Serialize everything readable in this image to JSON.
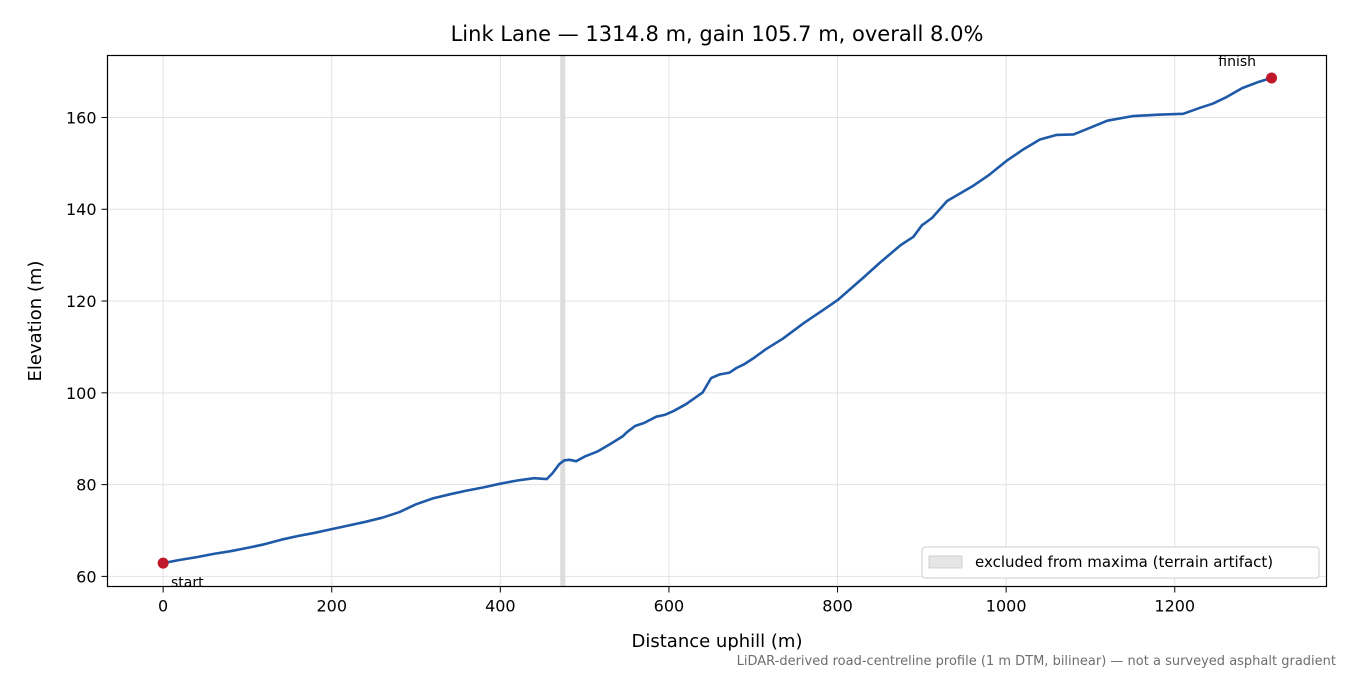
{
  "chart_data": {
    "type": "line",
    "title": "Link Lane — 1314.8 m, gain 105.7 m, overall 8.0%",
    "xlabel": "Distance uphill (m)",
    "ylabel": "Elevation (m)",
    "xlim": [
      -66,
      1380
    ],
    "ylim": [
      57.8,
      173.5
    ],
    "xticks": [
      0,
      200,
      400,
      600,
      800,
      1000,
      1200
    ],
    "yticks": [
      60,
      80,
      100,
      120,
      140,
      160
    ],
    "x_tick_labels": [
      "0",
      "200",
      "400",
      "600",
      "800",
      "1000",
      "1200"
    ],
    "y_tick_labels": [
      "60",
      "80",
      "100",
      "120",
      "140",
      "160"
    ],
    "grid": true,
    "legend_position": "lower-right",
    "legend_label": "excluded from maxima (terrain artifact)",
    "excluded_band": [
      471,
      477
    ],
    "footnote": "LiDAR-derived road-centreline profile (1 m DTM, bilinear) — not a surveyed asphalt gradient",
    "line_color": "#1f5aa8",
    "marker_color": "#c0182a",
    "band_color": "#d9d9d9",
    "start_label": "start",
    "finish_label": "finish",
    "start_point": {
      "x": 0,
      "y": 62.9
    },
    "finish_point": {
      "x": 1314.8,
      "y": 168.6
    },
    "series": [
      {
        "x": [
          0,
          20,
          40,
          60,
          80,
          100,
          120,
          140,
          160,
          180,
          200,
          220,
          240,
          260,
          280,
          300,
          320,
          340,
          360,
          380,
          400,
          420,
          440,
          455,
          462,
          470,
          476,
          482,
          490,
          500,
          515,
          530,
          545,
          550,
          560,
          570,
          585,
          595,
          605,
          620,
          640,
          650,
          660,
          672,
          680,
          690,
          700,
          715,
          735,
          760,
          785,
          800,
          830,
          850,
          875,
          890,
          900,
          912,
          930,
          960,
          980,
          1000,
          1020,
          1040,
          1060,
          1080,
          1100,
          1120,
          1150,
          1180,
          1210,
          1230,
          1245,
          1260,
          1280,
          1300,
          1314.8
        ],
        "y": [
          62.9,
          63.6,
          64.2,
          64.9,
          65.5,
          66.2,
          67.0,
          68.0,
          68.8,
          69.5,
          70.3,
          71.1,
          71.9,
          72.8,
          74.0,
          75.7,
          77.0,
          77.9,
          78.7,
          79.4,
          80.2,
          80.9,
          81.4,
          81.2,
          82.5,
          84.5,
          85.3,
          85.4,
          85.1,
          86.1,
          87.2,
          88.8,
          90.5,
          91.4,
          92.8,
          93.4,
          94.8,
          95.2,
          96.0,
          97.5,
          100.1,
          103.2,
          104.0,
          104.4,
          105.4,
          106.3,
          107.5,
          109.5,
          111.8,
          115.2,
          118.3,
          120.2,
          125.0,
          128.3,
          132.2,
          134.0,
          136.5,
          138.1,
          141.8,
          145.0,
          147.5,
          150.5,
          153.0,
          155.2,
          156.2,
          156.3,
          157.8,
          159.3,
          160.3,
          160.6,
          160.8,
          162.1,
          163.0,
          164.3,
          166.4,
          167.8,
          168.6
        ]
      }
    ]
  }
}
